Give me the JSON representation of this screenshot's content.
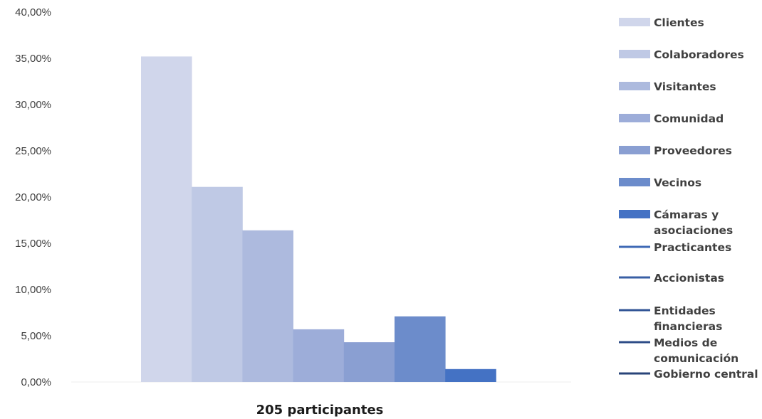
{
  "chart_data": {
    "type": "bar",
    "title": "",
    "xlabel": "205 participantes",
    "ylabel": "",
    "ylim": [
      0,
      40
    ],
    "y_ticks": [
      "0,00%",
      "5,00%",
      "10,00%",
      "15,00%",
      "20,00%",
      "25,00%",
      "30,00%",
      "35,00%",
      "40,00%"
    ],
    "grid": false,
    "legend_position": "right",
    "series": [
      {
        "name": "Clientes",
        "value": 35.2,
        "color": "#d0d6eb",
        "marker": "bar"
      },
      {
        "name": "Colaboradores",
        "value": 21.1,
        "color": "#bfc9e5",
        "marker": "bar"
      },
      {
        "name": "Visitantes",
        "value": 16.4,
        "color": "#adbade",
        "marker": "bar"
      },
      {
        "name": "Comunidad",
        "value": 5.7,
        "color": "#9dadd9",
        "marker": "bar"
      },
      {
        "name": "Proveedores",
        "value": 4.3,
        "color": "#8a9fd2",
        "marker": "bar"
      },
      {
        "name": "Vecinos",
        "value": 7.1,
        "color": "#6c8ccb",
        "marker": "bar"
      },
      {
        "name": "Cámaras y asociaciones",
        "value": 1.4,
        "color": "#4472c4",
        "marker": "bar"
      },
      {
        "name": "Practicantes",
        "value": 0,
        "color": "#3e69b5",
        "marker": "line"
      },
      {
        "name": "Accionistas",
        "value": 0,
        "color": "#385fa4",
        "marker": "line"
      },
      {
        "name": "Entidades financieras",
        "value": 0,
        "color": "#325596",
        "marker": "line"
      },
      {
        "name": "Medios de comunicación",
        "value": 0,
        "color": "#2d4c87",
        "marker": "line"
      },
      {
        "name": "Gobierno central",
        "value": 0,
        "color": "#294479",
        "marker": "line"
      }
    ]
  }
}
